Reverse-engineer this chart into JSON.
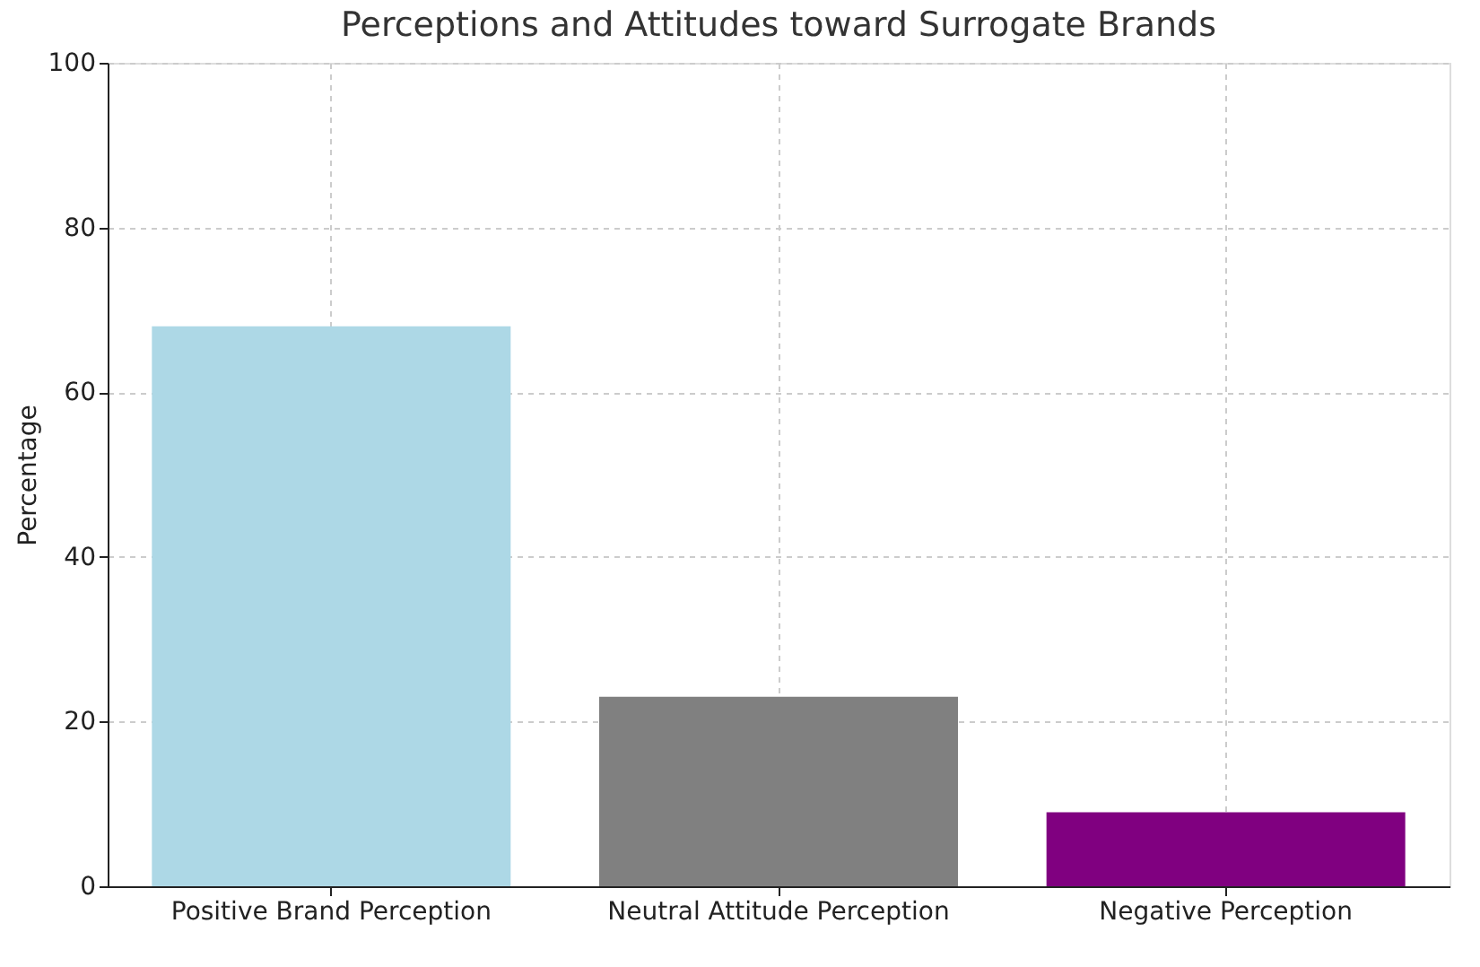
{
  "chart_data": {
    "type": "bar",
    "title": "Perceptions and Attitudes toward Surrogate Brands",
    "ylabel": "Percentage",
    "categories": [
      "Positive Brand Perception",
      "Neutral Attitude Perception",
      "Negative Perception"
    ],
    "values": [
      68,
      23,
      9
    ],
    "colors": [
      "#add8e6",
      "#808080",
      "#800080"
    ],
    "ylim": [
      0,
      100
    ],
    "yticks": [
      0,
      20,
      40,
      60,
      80,
      100
    ],
    "grid": true
  }
}
